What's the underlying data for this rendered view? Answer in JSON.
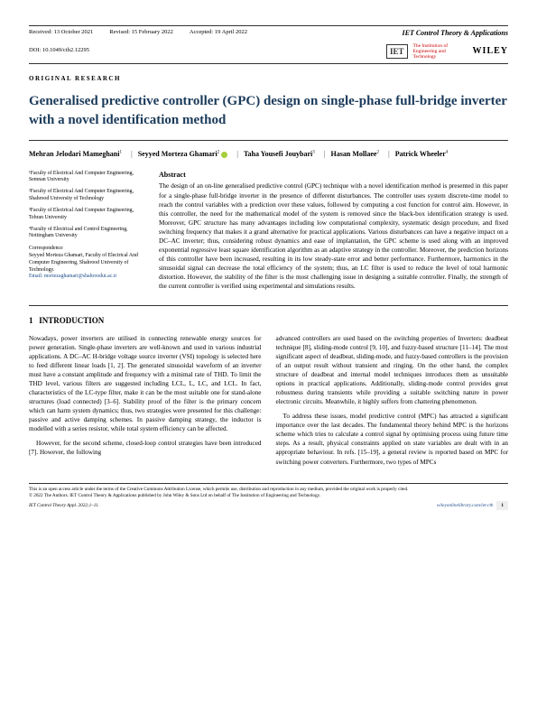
{
  "header": {
    "received": "Received: 13 October 2021",
    "revised": "Revised: 15 February 2022",
    "accepted": "Accepted: 19 April 2022",
    "journal": "IET Control Theory & Applications",
    "doi": "DOI: 10.1049/cth2.12295",
    "iet_logo": "IET",
    "iet_tag": "The Institution of Engineering and Technology",
    "wiley": "WILEY"
  },
  "article_type": "ORIGINAL RESEARCH",
  "title": "Generalised predictive controller (GPC) design on single-phase full-bridge inverter with a novel identification method",
  "authors": [
    {
      "name": "Mehran Jelodari Mameghani",
      "affil": "1"
    },
    {
      "name": "Seyyed Morteza Ghamari",
      "affil": "2",
      "orcid": true
    },
    {
      "name": "Taha Yousefi Jouybari",
      "affil": "3"
    },
    {
      "name": "Hasan Mollaee",
      "affil": "2"
    },
    {
      "name": "Patrick Wheeler",
      "affil": "4"
    }
  ],
  "affiliations": [
    "¹Faculty of Electrical And Computer Engineering, Semnan University",
    "²Faculty of Electrical And Computer Engineering, Shahrood University of Technology",
    "³Faculty of Electrical And Computer Engineering, Tehran University",
    "⁴Faculty of Electrical and Control Engineering, Nottingham University"
  ],
  "correspondence": {
    "head": "Correspondence",
    "body": "Seyyed Morteza Ghamari, Faculty of Electrical And Computer Engineering, Shahrood University of Technology.",
    "email": "Email: mortezaghamari@shahroodut.ac.ir"
  },
  "abstract": {
    "head": "Abstract",
    "text": "The design of an on-line generalised predictive control (GPC) technique with a novel identification method is presented in this paper for a single-phase full-bridge inverter in the presence of different disturbances. The controller uses system discrete-time model to reach the control variables with a prediction over these values, followed by computing a cost function for control aim. However, in this controller, the need for the mathematical model of the system is removed since the black-box identification strategy is used. Moreover, GPC structure has many advantages including low computational complexity, systematic design procedure, and fixed switching frequency that makes it a grand alternative for practical applications. Various disturbances can have a negative impact on a DC–AC inverter; thus, considering robust dynamics and ease of implantation, the GPC scheme is used along with an improved exponential regressive least square identification algorithm as an adaptive strategy in the controller. Moreover, the prediction horizons of this controller have been increased, resulting in its low steady-state error and better performance. Furthermore, harmonics in the sinusoidal signal can decrease the total efficiency of the system; thus, an LC filter is used to reduce the level of total harmonic distortion. However, the stability of the filter is the most challenging issue in designing a suitable controller. Finally, the strength of the current controller is verified using experimental and simulations results."
  },
  "section1": {
    "num": "1",
    "title": "INTRODUCTION",
    "col1": [
      "Nowadays, power inverters are utilised in connecting renewable energy sources for power generation. Single-phase inverters are well-known and used in various industrial applications. A DC–AC H-bridge voltage source inverter (VSI) topology is selected here to feed different linear loads [1, 2]. The generated sinusoidal waveform of an inverter must have a constant amplitude and frequency with a minimal rate of THD. To limit the THD level, various filters are suggested including LCL, L, LC, and LCL. In fact, characteristics of the LC-type filter, make it can be the most suitable one for stand-alone structures (load connected) [3–6]. Stability proof of the filter is the primary concern which can harm system dynamics; thus, two strategies were presented for this challenge: passive and active damping schemes. In passive damping strategy, the inductor is modelled with a series resistor, while total system efficiency can be affected.",
      "However, for the second scheme, closed-loop control strategies have been introduced [7]. However, the following"
    ],
    "col2": [
      "advanced controllers are used based on the switching properties of Inverters: deadbeat technique [8], sliding-mode control [9, 10], and fuzzy-based structure [11–14]. The most significant aspect of deadbeat, sliding-mode, and fuzzy-based controllers is the provision of an output result without transient and ringing. On the other hand, the complex structure of deadbeat and internal model techniques introduces them as unsuitable options in practical applications. Additionally, sliding-mode control provides great robustness during transients while providing a suitable switching nature in power electronic circuits. Meanwhile, it highly suffers from chattering phenomenon.",
      "To address these issues, model predictive control (MPC) has attracted a significant importance over the last decades. The fundamental theory behind MPC is the horizons scheme which tries to calculate a control signal by optimising process using future time steps. As a result, physical constraints applied on state variables are dealt with in an appropriate behaviour. In refs. [15–19], a general review is reported based on MPC for switching power converters. Furthermore, two types of MPCs"
    ]
  },
  "footer": {
    "license": "This is an open access article under the terms of the Creative Commons Attribution License, which permits use, distribution and reproduction in any medium, provided the original work is properly cited.",
    "copyright": "© 2022 The Authors. IET Control Theory & Applications published by John Wiley & Sons Ltd on behalf of The Institution of Engineering and Technology.",
    "cite": "IET Control Theory Appl. 2022;1–11.",
    "url": "wileyonlinelibrary.com/iet-cth",
    "pagenum": "1"
  }
}
